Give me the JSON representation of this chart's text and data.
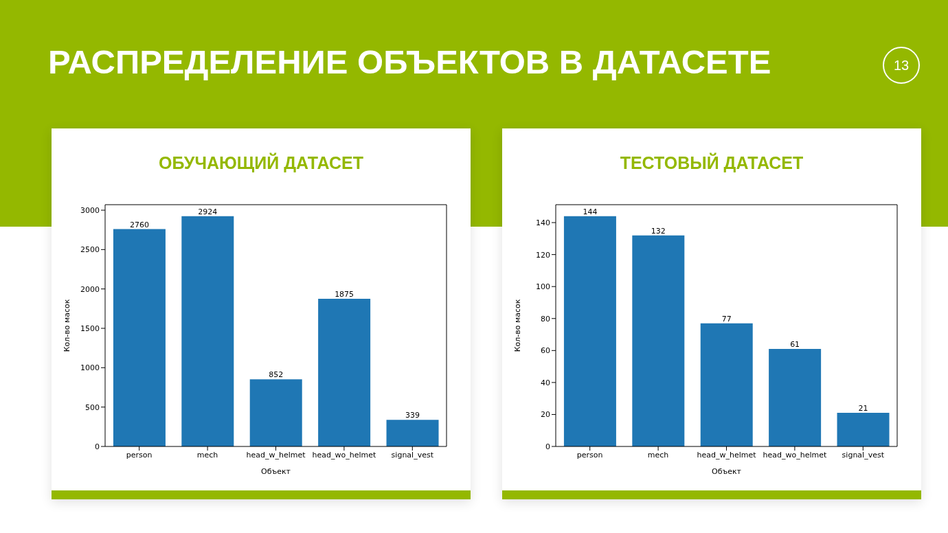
{
  "chart_data": [
    {
      "type": "bar",
      "title": "ОБУЧАЮЩИЙ ДАТАСЕТ",
      "xlabel": "Объект",
      "ylabel": "Кол-во масок",
      "annotations": [
        "РАСПРЕДЕЛЕНИЕ ОБЪЕКТОВ В ДАТАСЕТЕ",
        "13"
      ],
      "categories": [
        "person",
        "mech",
        "head_w_helmet",
        "head_wo_helmet",
        "signal_vest"
      ],
      "series": [
        {
          "color": "#1f77b4",
          "values": [
            2760,
            2924,
            852,
            1875,
            339
          ]
        }
      ],
      "ylim": [
        0,
        3070
      ],
      "yticks": [
        0,
        500,
        1000,
        1500,
        2000,
        2500,
        3000
      ],
      "data_labels": true
    },
    {
      "type": "bar",
      "title": "ТЕСТОВЫЙ ДАТАСЕТ",
      "xlabel": "Объект",
      "ylabel": "Кол-во масок",
      "categories": [
        "person",
        "mech",
        "head_w_helmet",
        "head_wo_helmet",
        "signal_vest"
      ],
      "series": [
        {
          "color": "#1f77b4",
          "values": [
            144,
            132,
            77,
            61,
            21
          ]
        }
      ],
      "ylim": [
        0,
        151.2
      ],
      "yticks": [
        0,
        20,
        40,
        60,
        80,
        100,
        120,
        140
      ],
      "data_labels": true
    }
  ]
}
